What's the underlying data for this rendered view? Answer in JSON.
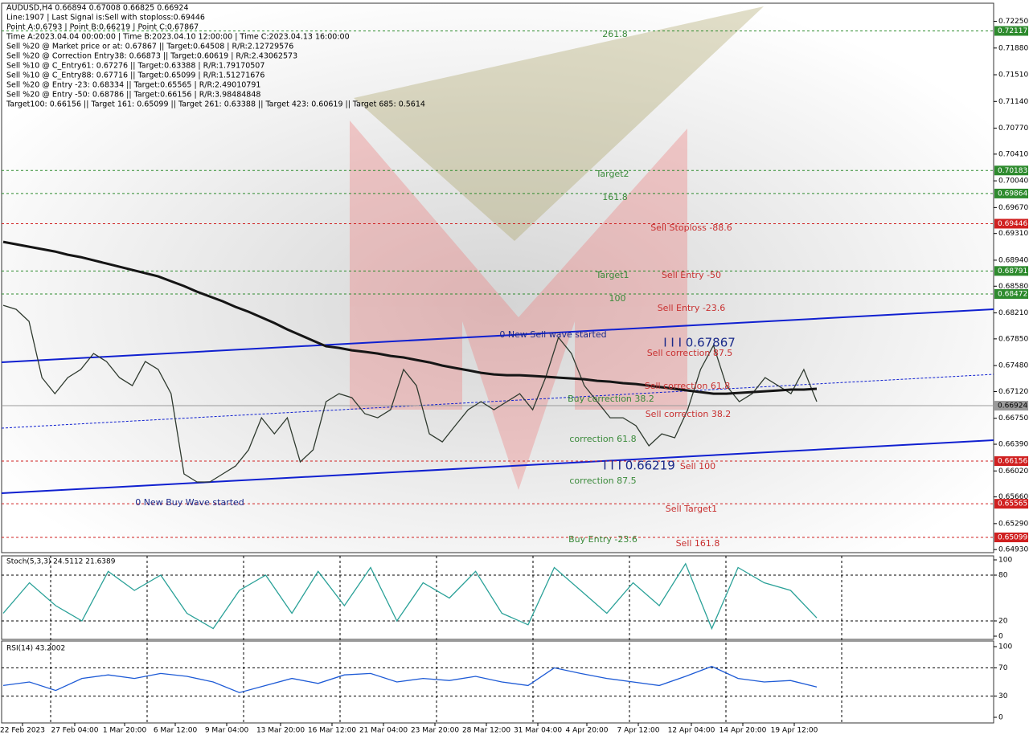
{
  "header": {
    "lines": [
      "AUDUSD,H4  0.66894 0.67008 0.66825 0.66924",
      "Line:1907 | Last Signal is:Sell with stoploss:0.69446",
      "Point A:0.6793 | Point B:0.66219 | Point C:0.67867",
      "Time A:2023.04.04 00:00:00 | Time B:2023.04.10 12:00:00 | Time C:2023.04.13 16:00:00",
      "Sell %20 @ Market price or at: 0.67867 || Target:0.64508 | R/R:2.12729576",
      "Sell %20 @ Correction Entry38: 0.66873 || Target:0.60619 | R/R:2.43062573",
      "Sell %10 @ C_Entry61: 0.67276 || Target:0.63388 | R/R:1.79170507",
      "Sell %10 @ C_Entry88: 0.67716 || Target:0.65099 | R/R:1.51271676",
      "Sell %20 @ Entry -23: 0.68334 || Target:0.65565 | R/R:2.49010791",
      "Sell %20 @ Entry -50: 0.68786 || Target:0.66156 | R/R:3.98484848",
      "Target100: 0.66156 || Target 161: 0.65099 || Target 261: 0.63388 || Target 423: 0.60619 || Target 685: 0.5614"
    ]
  },
  "time_axis": {
    "labels": [
      "22 Feb 2023",
      "27 Feb 04:00",
      "1 Mar 20:00",
      "6 Mar 12:00",
      "9 Mar 04:00",
      "13 Mar 20:00",
      "16 Mar 12:00",
      "21 Mar 04:00",
      "23 Mar 20:00",
      "28 Mar 12:00",
      "31 Mar 04:00",
      "4 Apr 20:00",
      "7 Apr 12:00",
      "12 Apr 04:00",
      "14 Apr 20:00",
      "19 Apr 12:00"
    ]
  },
  "chart_data": [
    {
      "type": "line",
      "ylim": [
        0.6491,
        0.7249
      ],
      "yticks": [
        {
          "value": 0.7225,
          "label": "0.72250"
        },
        {
          "value": 0.7188,
          "label": "0.71880"
        },
        {
          "value": 0.7151,
          "label": "0.71510"
        },
        {
          "value": 0.7114,
          "label": "0.71140"
        },
        {
          "value": 0.7077,
          "label": "0.70770"
        },
        {
          "value": 0.7041,
          "label": "0.70410"
        },
        {
          "value": 0.7004,
          "label": "0.70040"
        },
        {
          "value": 0.6967,
          "label": "0.69670"
        },
        {
          "value": 0.6931,
          "label": "0.69310"
        },
        {
          "value": 0.6894,
          "label": "0.68940"
        },
        {
          "value": 0.6858,
          "label": "0.68580"
        },
        {
          "value": 0.6821,
          "label": "0.68210"
        },
        {
          "value": 0.6785,
          "label": "0.67850"
        },
        {
          "value": 0.6748,
          "label": "0.67480"
        },
        {
          "value": 0.6712,
          "label": "0.67120"
        },
        {
          "value": 0.6675,
          "label": "0.66750"
        },
        {
          "value": 0.6639,
          "label": "0.66390"
        },
        {
          "value": 0.6602,
          "label": "0.66020"
        },
        {
          "value": 0.6566,
          "label": "0.65660"
        },
        {
          "value": 0.6529,
          "label": "0.65290"
        },
        {
          "value": 0.6493,
          "label": "0.64930"
        }
      ],
      "series": [
        {
          "name": "AUDUSD,H4",
          "color": "#2f3a2f",
          "values": [
            0.68315,
            0.68259,
            0.68092,
            0.67313,
            0.67091,
            0.67313,
            0.67425,
            0.67647,
            0.67536,
            0.67313,
            0.67202,
            0.67536,
            0.67425,
            0.67091,
            0.65978,
            0.65867,
            0.65867,
            0.65978,
            0.66089,
            0.66312,
            0.66757,
            0.66534,
            0.66757,
            0.66145,
            0.66312,
            0.6698,
            0.67091,
            0.67035,
            0.66813,
            0.66757,
            0.66868,
            0.67425,
            0.67202,
            0.66534,
            0.66423,
            0.66646,
            0.66868,
            0.6698,
            0.66868,
            0.6698,
            0.67091,
            0.66868,
            0.67313,
            0.6787,
            0.67647,
            0.67202,
            0.6698,
            0.66757,
            0.66757,
            0.66646,
            0.66368,
            0.66534,
            0.66479,
            0.66868,
            0.67425,
            0.67759,
            0.67202,
            0.6698,
            0.67091,
            0.67313,
            0.67202,
            0.67091,
            0.67425,
            0.6698
          ]
        },
        {
          "name": "MA200",
          "color": "#151515",
          "values": [
            0.69194,
            0.69161,
            0.69127,
            0.69094,
            0.69061,
            0.69016,
            0.68983,
            0.68938,
            0.68894,
            0.68849,
            0.68805,
            0.6876,
            0.68716,
            0.68649,
            0.68582,
            0.68504,
            0.68437,
            0.68371,
            0.68293,
            0.68226,
            0.68148,
            0.6807,
            0.67981,
            0.67903,
            0.67825,
            0.67747,
            0.67725,
            0.67692,
            0.6767,
            0.67647,
            0.67614,
            0.67592,
            0.67558,
            0.67525,
            0.6748,
            0.67447,
            0.67414,
            0.6738,
            0.67358,
            0.67347,
            0.67347,
            0.67336,
            0.67325,
            0.67313,
            0.67302,
            0.67291,
            0.67269,
            0.67258,
            0.67236,
            0.67224,
            0.67202,
            0.6718,
            0.67158,
            0.67135,
            0.67113,
            0.67091,
            0.67091,
            0.67102,
            0.67113,
            0.67124,
            0.67135,
            0.67147,
            0.67147,
            0.67158
          ]
        }
      ],
      "levels": [
        {
          "value": 0.72117,
          "label": "0.72117",
          "color": "#2e8b2e"
        },
        {
          "value": 0.70183,
          "label": "0.70183",
          "color": "#2e8b2e"
        },
        {
          "value": 0.69864,
          "label": "0.69864",
          "color": "#2e8b2e"
        },
        {
          "value": 0.69446,
          "label": "0.69446",
          "color": "#d02020"
        },
        {
          "value": 0.68791,
          "label": "0.68791",
          "color": "#2e8b2e"
        },
        {
          "value": 0.68472,
          "label": "0.68472",
          "color": "#2e8b2e"
        },
        {
          "value": 0.66924,
          "label": "0.66924",
          "color": "#9a9a9a"
        },
        {
          "value": 0.66156,
          "label": "0.66156",
          "color": "#d02020"
        },
        {
          "value": 0.65565,
          "label": "0.65565",
          "color": "#d02020"
        },
        {
          "value": 0.65099,
          "label": "0.65099",
          "color": "#d02020"
        }
      ],
      "annotations": [
        {
          "text": "261.8",
          "color": "#3a8a3a"
        },
        {
          "text": "Target2",
          "color": "#3a8a3a"
        },
        {
          "text": "161.8",
          "color": "#3a8a3a"
        },
        {
          "text": "Sell Stoploss -88.6",
          "color": "#c83030"
        },
        {
          "text": "Target1",
          "color": "#3a8a3a"
        },
        {
          "text": "Sell Entry -50",
          "color": "#c83030"
        },
        {
          "text": "100",
          "color": "#3a8a3a"
        },
        {
          "text": "Sell Entry -23.6",
          "color": "#c83030"
        },
        {
          "text": "0 New Sell wave started",
          "color": "#1a2a8a"
        },
        {
          "text": "I I I 0.67867",
          "color": "#1a2a8a"
        },
        {
          "text": "Sell correction 87.5",
          "color": "#c83030"
        },
        {
          "text": "Sell correction 61.8",
          "color": "#c83030"
        },
        {
          "text": "Buy correction 38.2",
          "color": "#3a8a3a"
        },
        {
          "text": "Sell correction 38.2",
          "color": "#c83030"
        },
        {
          "text": "correction 61.8",
          "color": "#3a8a3a"
        },
        {
          "text": "I I I 0.66219",
          "color": "#1a2a8a"
        },
        {
          "text": "Sell 100",
          "color": "#c83030"
        },
        {
          "text": "correction 87.5",
          "color": "#3a8a3a"
        },
        {
          "text": "0 New Buy Wave started",
          "color": "#1a2a8a"
        },
        {
          "text": "Sell Target1",
          "color": "#c83030"
        },
        {
          "text": "Buy Entry -23.6",
          "color": "#3a8a3a"
        },
        {
          "text": "Sell 161.8",
          "color": "#c83030"
        }
      ]
    },
    {
      "type": "line",
      "title": "Stoch(5,3,3) 24.5112 21.6389",
      "ylim": [
        0,
        100
      ],
      "yticks": [
        100,
        80,
        20,
        0
      ],
      "series": [
        {
          "name": "Stoch",
          "color": "#2aa198",
          "values": [
            30,
            70,
            40,
            20,
            85,
            60,
            80,
            30,
            10,
            60,
            80,
            30,
            85,
            40,
            90,
            20,
            70,
            50,
            85,
            30,
            15,
            90,
            60,
            30,
            70,
            40,
            95,
            10,
            90,
            70,
            60,
            24
          ]
        }
      ]
    },
    {
      "type": "line",
      "title": "RSI(14) 43.2002",
      "ylim": [
        0,
        100
      ],
      "yticks": [
        100,
        70,
        30,
        0
      ],
      "series": [
        {
          "name": "RSI",
          "color": "#1e5bd6",
          "values": [
            45,
            50,
            38,
            55,
            60,
            55,
            62,
            58,
            50,
            35,
            45,
            55,
            48,
            60,
            62,
            50,
            55,
            52,
            58,
            50,
            45,
            70,
            62,
            55,
            50,
            45,
            58,
            72,
            55,
            50,
            52,
            43
          ]
        }
      ]
    }
  ]
}
